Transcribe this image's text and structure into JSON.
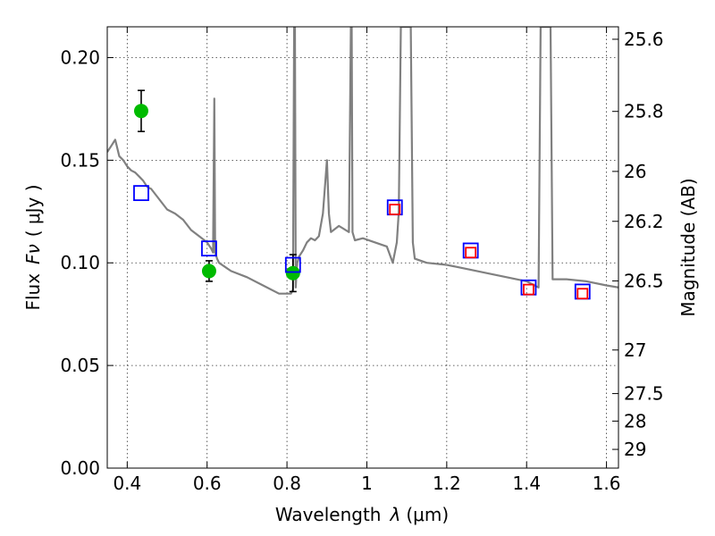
{
  "chart_data": {
    "type": "scatter",
    "xlabel_text": "Wavelength",
    "xlabel_symbol": "λ",
    "xlabel_unit": "(μm)",
    "ylabel_text": "Flux",
    "ylabel_symbol": "Fν",
    "ylabel_unit": "( μJy )",
    "y2label": "Magnitude (AB)",
    "xlim": [
      0.35,
      1.63
    ],
    "ylim": [
      0.0,
      0.215
    ],
    "x_ticks": [
      0.4,
      0.6,
      0.8,
      1.0,
      1.2,
      1.4,
      1.6
    ],
    "x_tick_labels": [
      "0.4",
      "0.6",
      "0.8",
      "1",
      "1.2",
      "1.4",
      "1.6"
    ],
    "y_ticks": [
      0.0,
      0.05,
      0.1,
      0.15,
      0.2
    ],
    "y_tick_labels": [
      "0.00",
      "0.05",
      "0.10",
      "0.15",
      "0.20"
    ],
    "mag_ticks": [
      25.6,
      25.8,
      26.0,
      26.2,
      26.5,
      27.0,
      27.5,
      28.0,
      29.0
    ],
    "mag_tick_labels": [
      "25.6",
      "25.8",
      "26",
      "26.2",
      "26.5",
      "27",
      "27.5",
      "28",
      "29"
    ],
    "grid": true,
    "series": [
      {
        "style": "line",
        "color": "#808080",
        "x": [
          0.35,
          0.36,
          0.37,
          0.375,
          0.38,
          0.39,
          0.4,
          0.41,
          0.42,
          0.43,
          0.44,
          0.45,
          0.46,
          0.48,
          0.5,
          0.52,
          0.54,
          0.56,
          0.58,
          0.6,
          0.61,
          0.615,
          0.618,
          0.62,
          0.625,
          0.63,
          0.66,
          0.7,
          0.74,
          0.78,
          0.81,
          0.815,
          0.818,
          0.82,
          0.822,
          0.824,
          0.826,
          0.83,
          0.84,
          0.85,
          0.86,
          0.87,
          0.88,
          0.89,
          0.9,
          0.905,
          0.91,
          0.93,
          0.955,
          0.96,
          0.962,
          0.964,
          0.97,
          0.99,
          1.02,
          1.05,
          1.065,
          1.075,
          1.08,
          1.085,
          1.087,
          1.09,
          1.095,
          1.1,
          1.105,
          1.11,
          1.115,
          1.12,
          1.15,
          1.2,
          1.25,
          1.3,
          1.35,
          1.4,
          1.42,
          1.43,
          1.435,
          1.44,
          1.45,
          1.46,
          1.465,
          1.47,
          1.5,
          1.55,
          1.6,
          1.63
        ],
        "y": [
          0.154,
          0.157,
          0.16,
          0.156,
          0.152,
          0.15,
          0.147,
          0.145,
          0.144,
          0.142,
          0.14,
          0.137,
          0.136,
          0.131,
          0.126,
          0.124,
          0.121,
          0.116,
          0.113,
          0.11,
          0.107,
          0.105,
          0.18,
          0.105,
          0.102,
          0.1,
          0.096,
          0.093,
          0.089,
          0.085,
          0.085,
          0.087,
          0.215,
          0.215,
          0.088,
          0.096,
          0.1,
          0.103,
          0.106,
          0.11,
          0.112,
          0.111,
          0.113,
          0.124,
          0.15,
          0.124,
          0.115,
          0.118,
          0.115,
          0.215,
          0.215,
          0.115,
          0.111,
          0.112,
          0.11,
          0.108,
          0.1,
          0.11,
          0.125,
          0.215,
          0.215,
          0.215,
          0.215,
          0.215,
          0.215,
          0.215,
          0.11,
          0.102,
          0.1,
          0.099,
          0.097,
          0.095,
          0.093,
          0.091,
          0.089,
          0.088,
          0.215,
          0.215,
          0.215,
          0.215,
          0.092,
          0.092,
          0.092,
          0.091,
          0.089,
          0.088
        ]
      },
      {
        "style": "errorbar-circle",
        "color": "#00bb00",
        "x": [
          0.435,
          0.605,
          0.815
        ],
        "y": [
          0.174,
          0.096,
          0.095
        ],
        "err": [
          0.01,
          0.005,
          0.009
        ]
      },
      {
        "style": "square-open",
        "color": "#0000ff",
        "size": 16,
        "x": [
          0.435,
          0.605,
          0.815,
          1.07,
          1.26,
          1.405,
          1.54
        ],
        "y": [
          0.134,
          0.107,
          0.099,
          0.127,
          0.106,
          0.088,
          0.086
        ]
      },
      {
        "style": "square-open",
        "color": "#ff0000",
        "size": 11,
        "x": [
          1.07,
          1.26,
          1.405,
          1.54
        ],
        "y": [
          0.126,
          0.105,
          0.087,
          0.085
        ]
      }
    ]
  }
}
